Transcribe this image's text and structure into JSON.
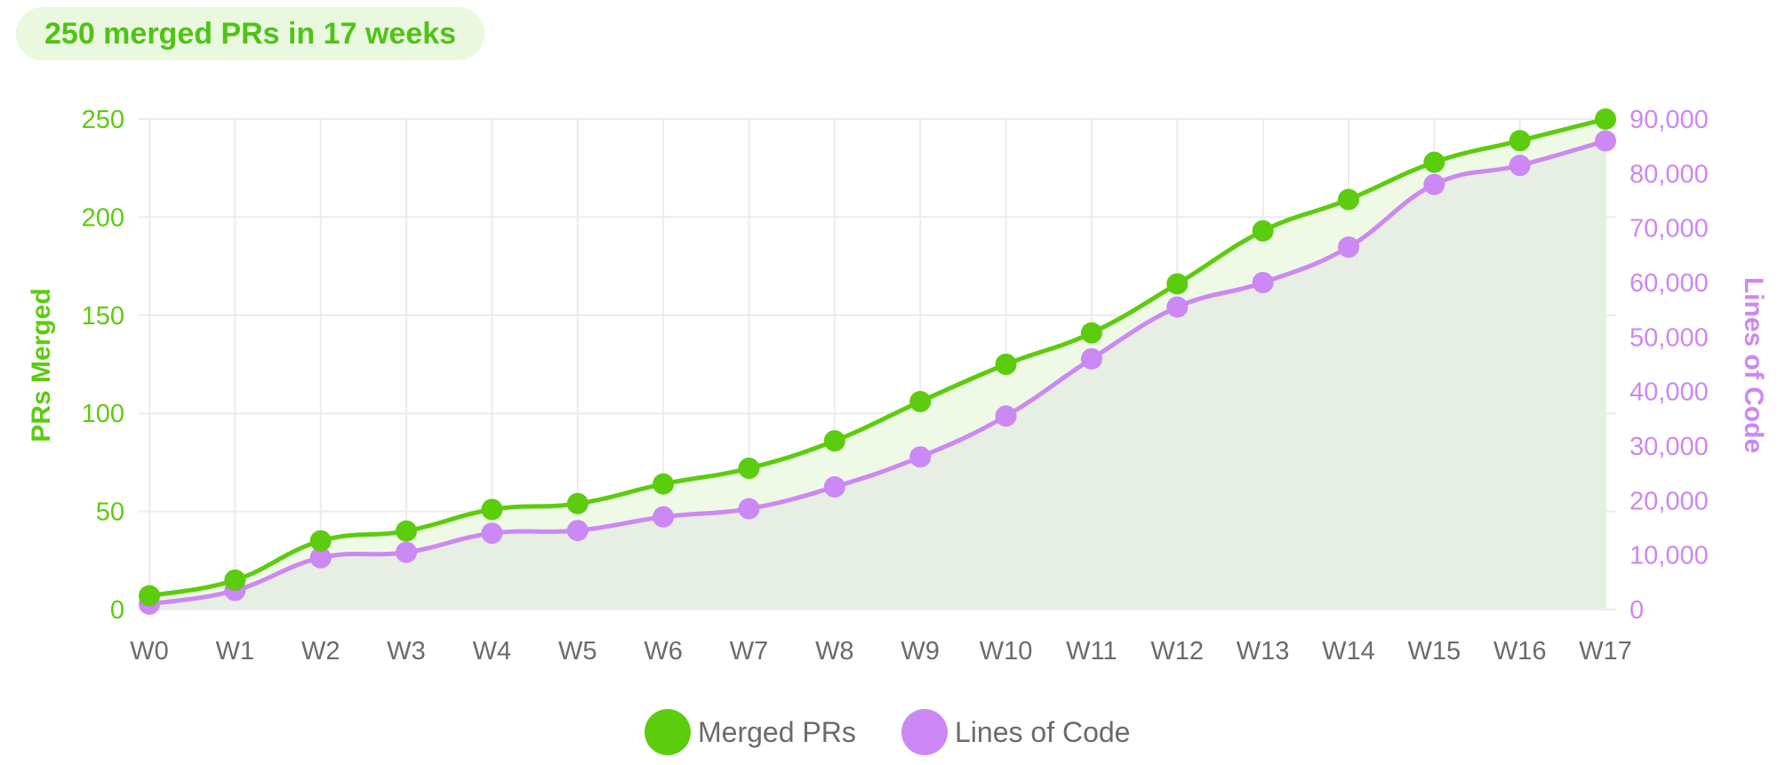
{
  "header": {
    "badge_text": "250 merged PRs in 17 weeks"
  },
  "chart_data": {
    "type": "line",
    "categories": [
      "W0",
      "W1",
      "W2",
      "W3",
      "W4",
      "W5",
      "W6",
      "W7",
      "W8",
      "W9",
      "W10",
      "W11",
      "W12",
      "W13",
      "W14",
      "W15",
      "W16",
      "W17"
    ],
    "series": [
      {
        "name": "Merged PRs",
        "axis": "left",
        "color": "#5ccc0e",
        "values": [
          7,
          15,
          35,
          40,
          51,
          54,
          64,
          72,
          86,
          106,
          125,
          141,
          166,
          193,
          209,
          228,
          239,
          250
        ]
      },
      {
        "name": "Lines of Code",
        "axis": "right",
        "color": "#cc88f4",
        "values": [
          1000,
          3500,
          9500,
          10500,
          14000,
          14500,
          17000,
          18500,
          22500,
          28000,
          35500,
          46000,
          55500,
          60000,
          66500,
          78000,
          81500,
          86000
        ]
      }
    ],
    "y_left": {
      "label": "PRs Merged",
      "min": 0,
      "max": 250,
      "ticks": [
        "0",
        "50",
        "100",
        "150",
        "200",
        "250"
      ],
      "color": "#5ccc0e"
    },
    "y_right": {
      "label": "Lines of Code",
      "min": 0,
      "max": 90000,
      "ticks": [
        "0",
        "10,000",
        "20,000",
        "30,000",
        "40,000",
        "50,000",
        "60,000",
        "70,000",
        "80,000",
        "90,000"
      ],
      "color": "#cc88f4"
    },
    "grid": true,
    "area_fill": true,
    "legend_position": "bottom-center"
  }
}
